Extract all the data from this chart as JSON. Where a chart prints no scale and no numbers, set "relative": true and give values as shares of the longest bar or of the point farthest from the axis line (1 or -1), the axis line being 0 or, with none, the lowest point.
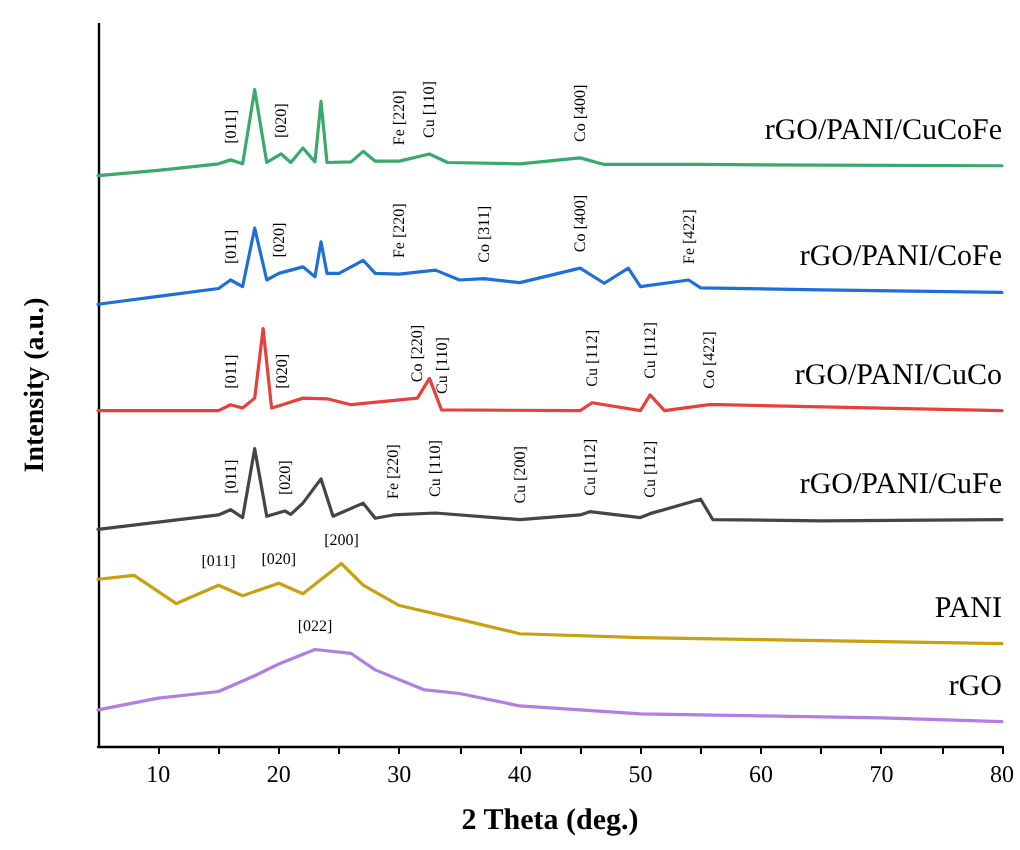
{
  "chart_data": {
    "type": "line",
    "relative": true,
    "xlabel": "2 Theta (deg.)",
    "ylabel": "Intensity (a.u.)",
    "xlim": [
      5,
      80
    ],
    "xticks": [
      10,
      {
        "value": 15,
        "label": null
      },
      20,
      {
        "value": 25,
        "label": null
      },
      30,
      {
        "value": 35,
        "label": null
      },
      40,
      {
        "value": 45,
        "label": null
      },
      50,
      {
        "value": 55,
        "label": null
      },
      60,
      {
        "value": 65,
        "label": null
      },
      70,
      {
        "value": 75,
        "label": null
      },
      80
    ],
    "grid": false,
    "legend": false,
    "marker": "none",
    "line_style": "solid",
    "series": [
      {
        "name": "rGO/PANI/CuCoFe",
        "color": "#3aa96c",
        "x": [
          5,
          10,
          15,
          16,
          17,
          18,
          19,
          20.2,
          21,
          22,
          23,
          23.5,
          24,
          26,
          27,
          28,
          30,
          32.5,
          34,
          40,
          45,
          47,
          55,
          65,
          80
        ],
        "values": [
          0.869,
          0.877,
          0.887,
          0.893,
          0.887,
          1.0,
          0.889,
          0.902,
          0.889,
          0.911,
          0.89,
          0.982,
          0.889,
          0.89,
          0.906,
          0.891,
          0.891,
          0.902,
          0.889,
          0.887,
          0.896,
          0.886,
          0.886,
          0.885,
          0.884
        ]
      },
      {
        "name": "rGO/PANI/CoFe",
        "color": "#1f6fd8",
        "x": [
          5,
          10,
          15,
          16,
          17,
          18,
          19,
          20,
          22,
          23,
          23.5,
          24,
          25,
          27,
          28,
          30,
          33,
          35,
          37,
          40,
          45,
          47,
          49,
          50,
          54,
          55,
          65,
          80
        ],
        "values": [
          0.673,
          0.685,
          0.697,
          0.71,
          0.7,
          0.789,
          0.71,
          0.72,
          0.73,
          0.715,
          0.768,
          0.72,
          0.72,
          0.74,
          0.72,
          0.719,
          0.725,
          0.71,
          0.712,
          0.706,
          0.728,
          0.705,
          0.728,
          0.7,
          0.71,
          0.698,
          0.695,
          0.691
        ]
      },
      {
        "name": "rGO/PANI/CuCo",
        "color": "#e8413c",
        "x": [
          5,
          15,
          16,
          17,
          18,
          18.7,
          19.4,
          20.3,
          22,
          24,
          26,
          31.5,
          32.5,
          33.5,
          45,
          46,
          50,
          50.8,
          52,
          55.7,
          56.5,
          80
        ],
        "values": [
          0.511,
          0.511,
          0.52,
          0.515,
          0.53,
          0.636,
          0.515,
          0.52,
          0.53,
          0.529,
          0.52,
          0.53,
          0.56,
          0.512,
          0.511,
          0.523,
          0.511,
          0.535,
          0.511,
          0.52,
          0.52,
          0.511
        ]
      },
      {
        "name": "rGO/PANI/CuFe",
        "color": "#454545",
        "x": [
          5,
          10,
          15,
          16,
          17,
          18,
          19,
          20.5,
          21,
          22,
          23.5,
          24.5,
          27,
          28,
          29.5,
          33,
          40,
          45,
          45.8,
          50,
          50.8,
          55,
          56,
          65,
          80
        ],
        "values": [
          0.33,
          0.341,
          0.352,
          0.36,
          0.348,
          0.453,
          0.35,
          0.358,
          0.353,
          0.37,
          0.407,
          0.35,
          0.37,
          0.347,
          0.352,
          0.355,
          0.345,
          0.352,
          0.357,
          0.348,
          0.354,
          0.376,
          0.345,
          0.343,
          0.345
        ]
      },
      {
        "name": "PANI",
        "color": "#c9a010",
        "x": [
          5,
          8,
          11.5,
          15,
          17,
          20,
          22,
          25.2,
          27,
          30,
          35,
          40,
          50,
          60,
          80
        ],
        "values": [
          0.254,
          0.26,
          0.217,
          0.245,
          0.229,
          0.248,
          0.232,
          0.278,
          0.245,
          0.214,
          0.193,
          0.171,
          0.165,
          0.162,
          0.156
        ]
      },
      {
        "name": "rGO",
        "color": "#b27ee0",
        "x": [
          5,
          10,
          15,
          18,
          20,
          23,
          26,
          28,
          32,
          35,
          40,
          50,
          60,
          70,
          80
        ],
        "values": [
          0.055,
          0.073,
          0.083,
          0.107,
          0.125,
          0.147,
          0.141,
          0.116,
          0.086,
          0.08,
          0.061,
          0.049,
          0.046,
          0.043,
          0.037
        ]
      }
    ],
    "annotations": [
      {
        "text": "[011]",
        "x": 16,
        "y": 0.893
      },
      {
        "text": "[020]",
        "x": 20.2,
        "y": 0.902
      },
      {
        "text": "Fe [220]",
        "x": 30,
        "y": 0.891
      },
      {
        "text": "Cu [110]",
        "x": 32.5,
        "y": 0.902
      },
      {
        "text": "Co [400]",
        "x": 45,
        "y": 0.896
      },
      {
        "text": "[011]",
        "x": 16,
        "y": 0.71
      },
      {
        "text": "[020]",
        "x": 20,
        "y": 0.72
      },
      {
        "text": "Fe [220]",
        "x": 30,
        "y": 0.719
      },
      {
        "text": "Co [311]",
        "x": 37,
        "y": 0.712
      },
      {
        "text": "Co [400]",
        "x": 45,
        "y": 0.728
      },
      {
        "text": "Fe [422]",
        "x": 54,
        "y": 0.71
      },
      {
        "text": "[011]",
        "x": 16,
        "y": 0.52
      },
      {
        "text": "[020]",
        "x": 20.3,
        "y": 0.52
      },
      {
        "text": "Co [220]",
        "x": 31.5,
        "y": 0.53
      },
      {
        "text": "Cu [110]",
        "x": 33.5,
        "y": 0.512
      },
      {
        "text": "Cu [112]",
        "x": 46,
        "y": 0.523
      },
      {
        "text": "Cu [112]",
        "x": 50.8,
        "y": 0.535
      },
      {
        "text": "Co [422]",
        "x": 55.7,
        "y": 0.52
      },
      {
        "text": "[011]",
        "x": 16,
        "y": 0.36
      },
      {
        "text": "[020]",
        "x": 20.5,
        "y": 0.358
      },
      {
        "text": "Fe [220]",
        "x": 29.5,
        "y": 0.352
      },
      {
        "text": "Cu [110]",
        "x": 33,
        "y": 0.355
      },
      {
        "text": "Cu [200]",
        "x": 40,
        "y": 0.345
      },
      {
        "text": "Cu [112]",
        "x": 45.8,
        "y": 0.357
      },
      {
        "text": "Cu [112]",
        "x": 50.8,
        "y": 0.354
      },
      {
        "text": "[011]",
        "x": 15,
        "y": 0.245
      },
      {
        "text": "[020]",
        "x": 20,
        "y": 0.248
      },
      {
        "text": "[200]",
        "x": 25.2,
        "y": 0.278
      },
      {
        "text": "[022]",
        "x": 23,
        "y": 0.147
      }
    ]
  }
}
